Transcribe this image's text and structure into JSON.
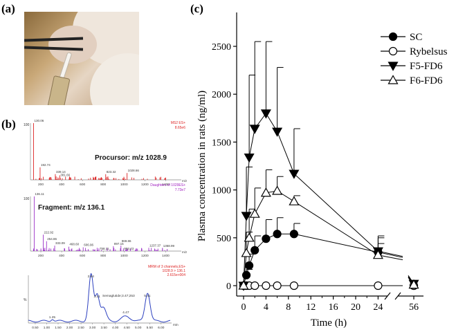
{
  "panels": {
    "a": "(a)",
    "b": "(b)",
    "c": "(c)"
  },
  "ms_spectrum_1": {
    "header_line1": "MS2 ES+",
    "header_line2": "8.65e6",
    "annotation": "Procursor: m/z 1028.9",
    "peak_labels": [
      "130.06",
      "192.74",
      "339.14",
      "381.66",
      "823.32",
      "1028.66"
    ],
    "x_ticks": [
      "200",
      "400",
      "600",
      "800",
      "1000",
      "1200",
      "1400"
    ],
    "x_unit": "m/z",
    "y_tick": "100"
  },
  "ms_spectrum_2": {
    "header_line1": "Daughters of 1029ES+",
    "header_line2": "7.73e7",
    "annotation": "Fragment: m/z 136.1",
    "peak_labels": [
      "136.11",
      "222.92",
      "254.86",
      "333.09",
      "468.60",
      "606.96",
      "758.11",
      "897.15",
      "969.86",
      "993.43",
      "1237.37",
      "1368.99"
    ],
    "x_ticks": [
      "200",
      "400",
      "600",
      "800",
      "1000",
      "1200",
      "1400"
    ],
    "x_unit": "m/z",
    "y_tick": "100"
  },
  "chromatogram": {
    "header_line1": "MRM of 3 channels,ES+",
    "header_line2": "1028.9 > 136.1",
    "header_line3": "2.615e+004",
    "peak_labels": [
      "1.25",
      "2.94",
      "3.21",
      "4.47",
      "5.41"
    ],
    "semaglutide_label": "Semaglutide;3.47;253",
    "y_unit": "%",
    "x_unit": "min",
    "x_ticks": [
      "0.50",
      "1.00",
      "1.50",
      "2.00",
      "2.50",
      "3.00",
      "3.50",
      "4.00",
      "4.50",
      "5.00",
      "5.50",
      "6.00"
    ]
  },
  "chart_data": {
    "type": "line",
    "xlabel": "Time (h)",
    "ylabel": "Plasma concentration in rats (ng/ml)",
    "x_ticks": [
      "0",
      "4",
      "8",
      "12",
      "16",
      "20",
      "24",
      "56"
    ],
    "y_ticks": [
      "0",
      "500",
      "1000",
      "1500",
      "2000",
      "2500"
    ],
    "ylim": [
      0,
      2700
    ],
    "axis_break": "between 24 and 56 h",
    "legend_position": "top-right",
    "series": [
      {
        "name": "SC",
        "marker": "filled-circle",
        "x": [
          0,
          0.5,
          1,
          2,
          4,
          6,
          9,
          24,
          56
        ],
        "y": [
          0,
          110,
          210,
          370,
          490,
          540,
          540,
          350,
          0
        ],
        "err": [
          0,
          60,
          120,
          150,
          200,
          170,
          110,
          150,
          0
        ]
      },
      {
        "name": "Rybelsus",
        "marker": "open-circle",
        "x": [
          0,
          0.5,
          1,
          2,
          4,
          6,
          9,
          24,
          56
        ],
        "y": [
          0,
          0,
          0,
          0,
          0,
          0,
          0,
          0,
          0
        ],
        "err": [
          0,
          0,
          0,
          0,
          0,
          0,
          0,
          0,
          0
        ]
      },
      {
        "name": "F5-FD6",
        "marker": "filled-triangle-down",
        "x": [
          0,
          0.5,
          1,
          2,
          4,
          6,
          9,
          24,
          56
        ],
        "y": [
          0,
          730,
          1340,
          1640,
          1800,
          1610,
          1170,
          360,
          20
        ],
        "err": [
          0,
          510,
          860,
          910,
          750,
          670,
          470,
          160,
          0
        ]
      },
      {
        "name": "F6-FD6",
        "marker": "open-triangle-up",
        "x": [
          0,
          0.5,
          1,
          2,
          4,
          6,
          9,
          24,
          56
        ],
        "y": [
          0,
          340,
          500,
          750,
          970,
          990,
          880,
          320,
          10
        ],
        "err": [
          0,
          220,
          300,
          270,
          240,
          150,
          60,
          120,
          0
        ]
      }
    ]
  }
}
